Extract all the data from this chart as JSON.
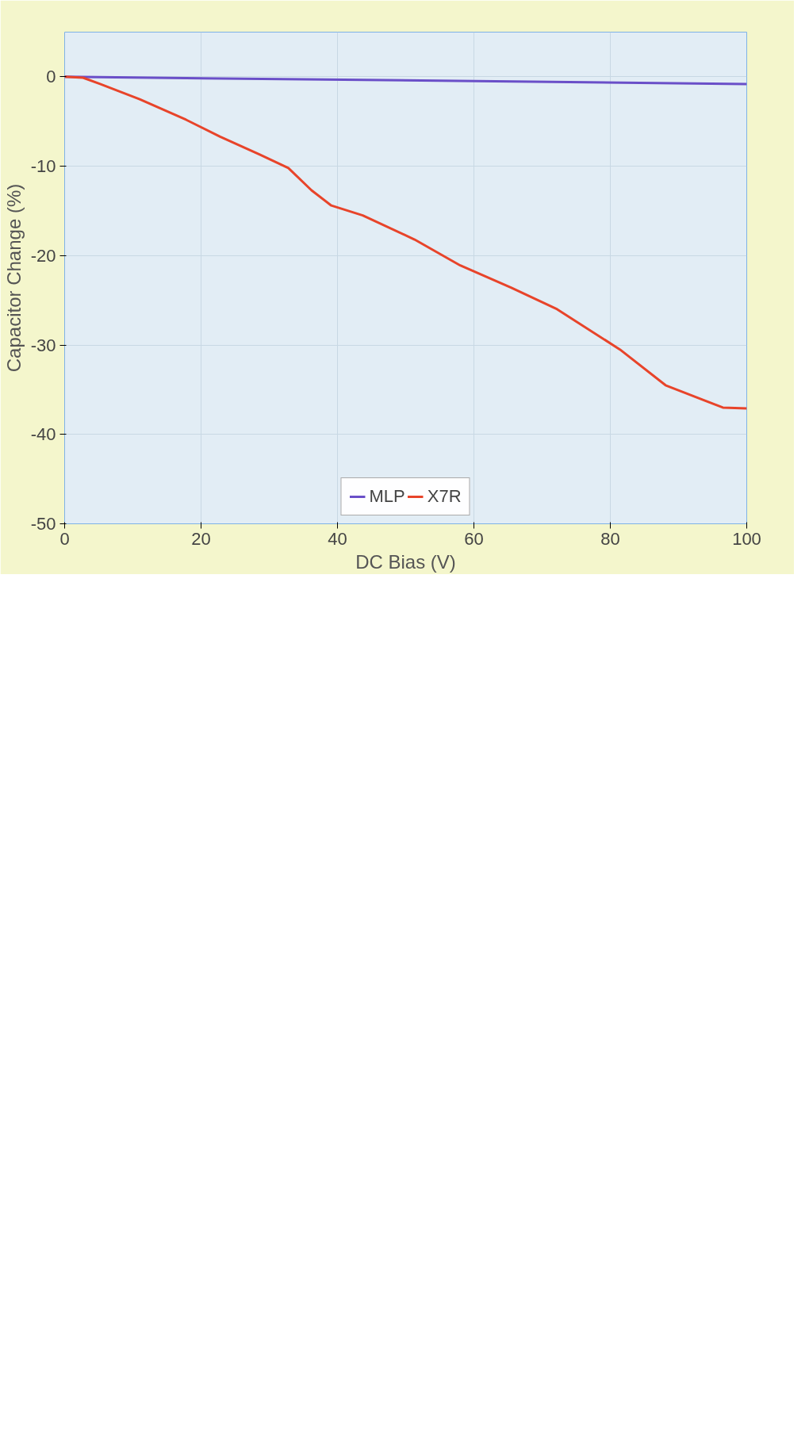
{
  "chart_data": {
    "type": "line",
    "xlabel": "DC Bias (V)",
    "ylabel": "Capacitor Change (%)",
    "xlim": [
      0,
      100
    ],
    "xticks": [
      0,
      20,
      40,
      60,
      80,
      100
    ],
    "ylim": [
      -50,
      5
    ],
    "yticks": [
      -50,
      -40,
      -30,
      -20,
      -10,
      0
    ],
    "grid": true,
    "legend": "bottom",
    "line_style": "solid",
    "series": [
      {
        "name": "MLP",
        "color": "#6a4fc8",
        "x": [
          0,
          100
        ],
        "values": [
          0,
          -0.8
        ]
      },
      {
        "name": "X7R",
        "color": "#e8442a",
        "x": [
          0,
          2.7,
          5.2,
          11,
          17.8,
          22.8,
          28.6,
          32.8,
          36.2,
          39.1,
          43.7,
          51.3,
          58,
          65.5,
          72.2,
          81.4,
          88.1,
          96.5,
          100
        ],
        "values": [
          0,
          -0.1,
          -0.8,
          -2.5,
          -4.8,
          -6.7,
          -8.7,
          -10.2,
          -12.7,
          -14.4,
          -15.5,
          -18.2,
          -21.1,
          -23.6,
          -26,
          -30.5,
          -34.5,
          -37,
          -37.1
        ]
      }
    ]
  }
}
